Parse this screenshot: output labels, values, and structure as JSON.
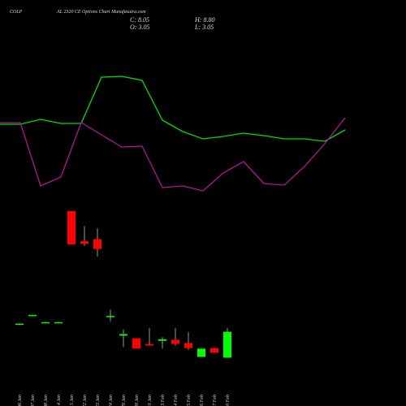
{
  "chart_data": [
    {
      "type": "candlestick",
      "title": "COLP",
      "subtitle": "AL 2320 CE Options Chart Munafasutra.com",
      "ohlc_labels": [
        "C: 8.05",
        "H: 8.80",
        "O: 3.05",
        "L: 3.05"
      ],
      "categories": [
        "06 Jan",
        "07 Jan",
        "08 Jan",
        "14 Jan",
        "15 Jan",
        "22 Jan",
        "23 Jan",
        "24 Jan",
        "29 Jan",
        "30 Jan",
        "31 Jan",
        "03 Feb",
        "04 Feb",
        "05 Feb",
        "06 Feb",
        "07 Feb",
        "10 Feb"
      ],
      "open": [
        9.6,
        11.3,
        9.9,
        9.9,
        31.3,
        25.5,
        25.9,
        11.0,
        7.3,
        6.8,
        5.7,
        6.3,
        6.5,
        5.9,
        3.2,
        4.9,
        3.05
      ],
      "high": [
        9.6,
        11.3,
        9.9,
        9.9,
        31.3,
        28.4,
        28.0,
        12.3,
        8.5,
        6.8,
        8.8,
        7.0,
        8.8,
        8.0,
        4.8,
        4.9,
        8.8
      ],
      "low": [
        9.6,
        11.3,
        9.9,
        9.9,
        24.9,
        24.6,
        22.6,
        10.1,
        5.1,
        4.8,
        5.4,
        4.8,
        5.4,
        4.6,
        3.2,
        4.0,
        3.05
      ],
      "close": [
        9.6,
        11.3,
        9.9,
        9.9,
        24.9,
        25.0,
        24.0,
        11.1,
        7.6,
        4.8,
        5.4,
        6.6,
        5.7,
        4.9,
        4.8,
        4.0,
        8.05
      ],
      "up_color": "#00ff00",
      "down_color": "#ff0000",
      "ylim": [
        0,
        72
      ]
    },
    {
      "type": "line",
      "ylim": [
        0,
        250
      ],
      "series": [
        {
          "color": "#00dd00",
          "values": [
            147,
            147,
            153,
            148,
            148,
            205,
            206,
            201,
            152,
            138,
            129,
            132,
            136,
            133,
            129,
            129,
            126,
            140
          ]
        },
        {
          "color": "#b0149b",
          "values": [
            149,
            149,
            71,
            82,
            149,
            134,
            119,
            120,
            69,
            71,
            65,
            87,
            101,
            74,
            72,
            95,
            123,
            155
          ]
        }
      ]
    }
  ]
}
